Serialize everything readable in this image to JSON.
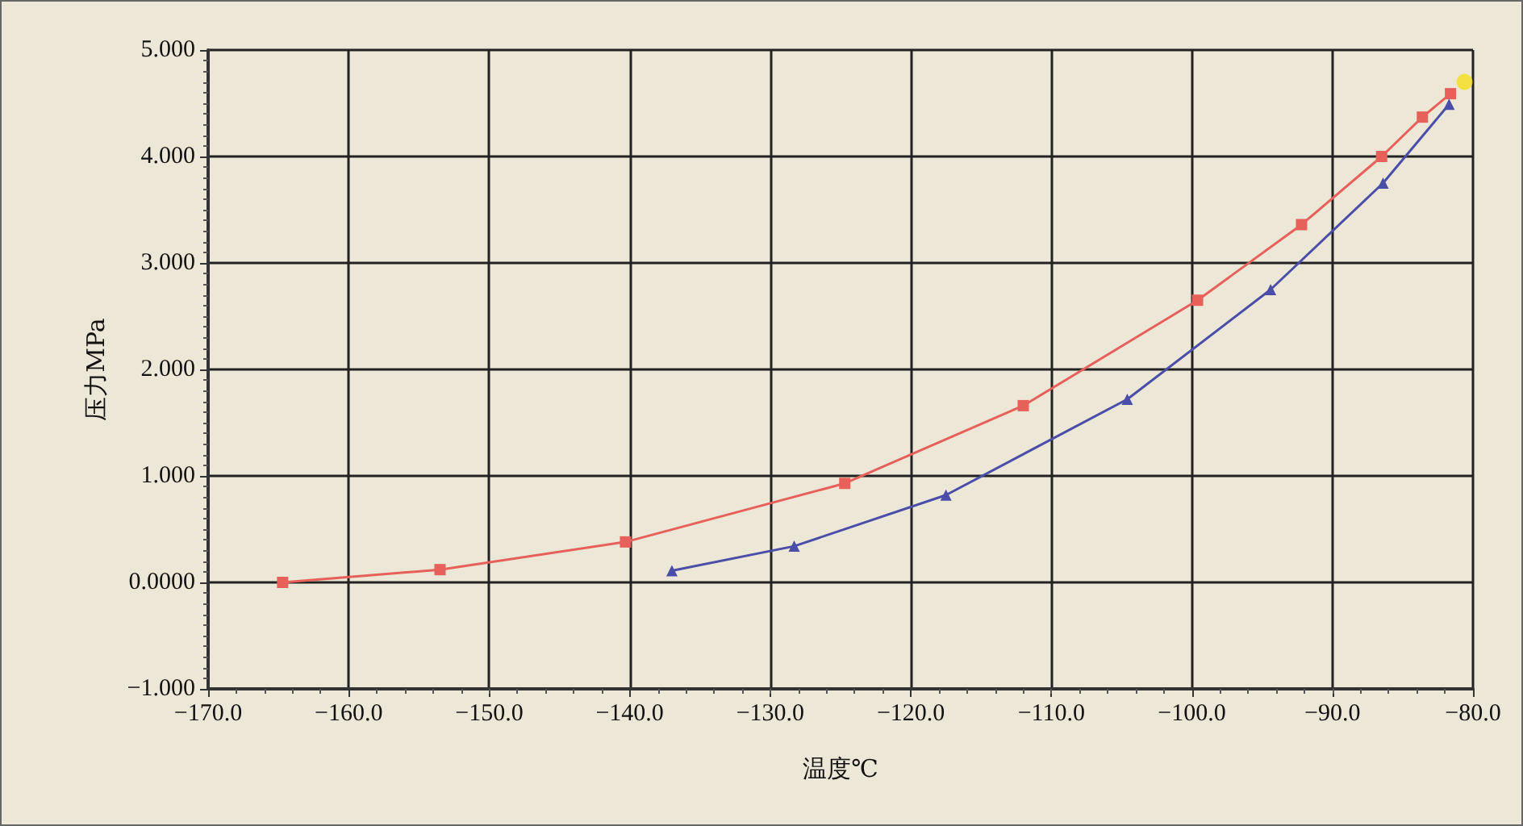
{
  "chart_data": {
    "type": "line",
    "xlabel": "温度℃",
    "ylabel": "压力MPa",
    "xlim": [
      -170,
      -80
    ],
    "ylim": [
      -1,
      5
    ],
    "xticks": [
      {
        "value": -170,
        "label": "−170.0"
      },
      {
        "value": -160,
        "label": "−160.0"
      },
      {
        "value": -150,
        "label": "−150.0"
      },
      {
        "value": -140,
        "label": "−140.0"
      },
      {
        "value": -130,
        "label": "−130.0"
      },
      {
        "value": -120,
        "label": "−120.0"
      },
      {
        "value": -110,
        "label": "−110.0"
      },
      {
        "value": -100,
        "label": "−100.0"
      },
      {
        "value": -90,
        "label": "−90.0"
      },
      {
        "value": -80,
        "label": "−80.0"
      }
    ],
    "yticks": [
      {
        "value": -1,
        "label": "−1.000"
      },
      {
        "value": 0,
        "label": "0.0000"
      },
      {
        "value": 1,
        "label": "1.000"
      },
      {
        "value": 2,
        "label": "2.000"
      },
      {
        "value": 3,
        "label": "3.000"
      },
      {
        "value": 4,
        "label": "4.000"
      },
      {
        "value": 5,
        "label": "5.000"
      }
    ],
    "grid": true,
    "series": [
      {
        "color": "#e8605a",
        "marker": "square",
        "x": [
          -164.7,
          -153.5,
          -140.3,
          -124.7,
          -112.0,
          -99.6,
          -92.2,
          -86.5,
          -83.6,
          -81.6
        ],
        "values": [
          0.0,
          0.12,
          0.38,
          0.93,
          1.66,
          2.65,
          3.36,
          4.0,
          4.37,
          4.59
        ]
      },
      {
        "color": "#4a4ea8",
        "marker": "triangle",
        "x": [
          -137.0,
          -128.3,
          -117.5,
          -104.6,
          -94.4,
          -86.4,
          -81.7
        ],
        "values": [
          0.11,
          0.34,
          0.82,
          1.72,
          2.75,
          3.75,
          4.49
        ]
      },
      {
        "type": "scatter",
        "color": "#f2e01a",
        "marker": "circle",
        "x": [
          -80.6
        ],
        "values": [
          4.7
        ]
      }
    ]
  }
}
